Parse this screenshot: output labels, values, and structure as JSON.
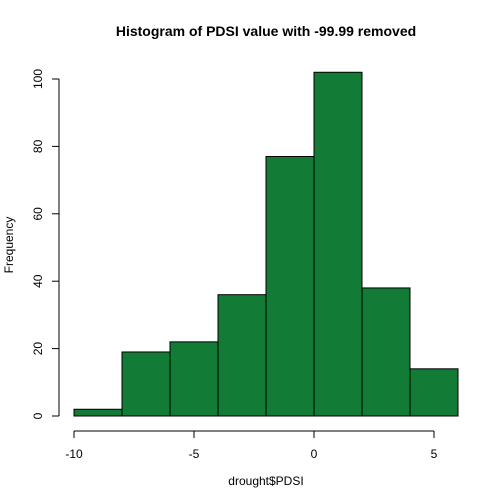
{
  "chart_data": {
    "type": "bar",
    "subtype": "histogram",
    "title": "Histogram of PDSI value with -99.99 removed",
    "xlabel": "drought$PDSI",
    "ylabel": "Frequency",
    "bins": [
      {
        "x0": -10,
        "x1": -8,
        "value": 2
      },
      {
        "x0": -8,
        "x1": -6,
        "value": 19
      },
      {
        "x0": -6,
        "x1": -4,
        "value": 22
      },
      {
        "x0": -4,
        "x1": -2,
        "value": 36
      },
      {
        "x0": -2,
        "x1": 0,
        "value": 77
      },
      {
        "x0": 0,
        "x1": 2,
        "value": 102
      },
      {
        "x0": 2,
        "x1": 4,
        "value": 38
      },
      {
        "x0": 4,
        "x1": 6,
        "value": 14
      }
    ],
    "xlim": [
      -10,
      6
    ],
    "ylim": [
      0,
      102
    ],
    "x_ticks": [
      -10,
      -5,
      0,
      5
    ],
    "x_tick_labels": [
      "-10",
      "-5",
      "0",
      "5"
    ],
    "y_ticks": [
      0,
      20,
      40,
      60,
      80,
      100
    ],
    "y_tick_labels": [
      "0",
      "20",
      "40",
      "60",
      "80",
      "100"
    ],
    "bar_color": "#127b36",
    "edge_color": "#000000",
    "grid": false,
    "legend": "none"
  }
}
